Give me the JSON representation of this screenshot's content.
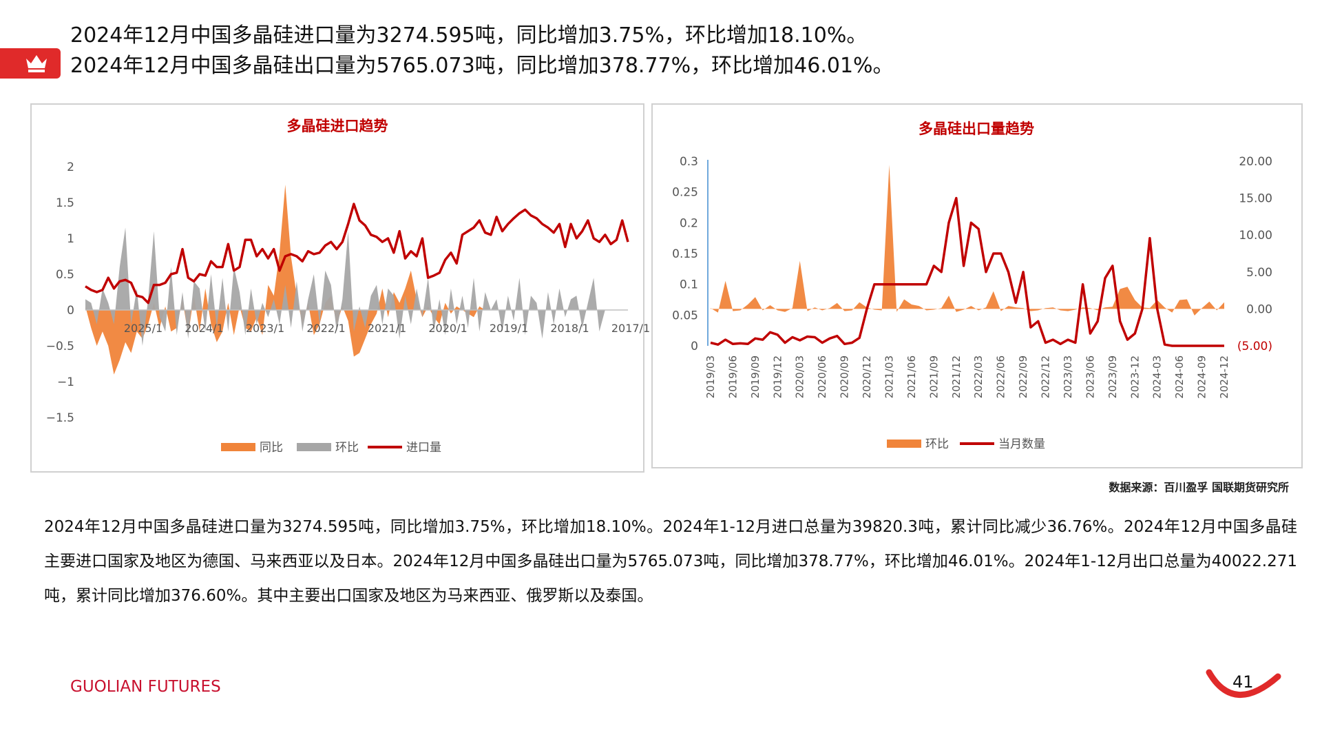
{
  "header": {
    "crown_icon": "crown-icon",
    "brand_color": "#e02a2a",
    "line1": "2024年12月中国多晶硅进口量为3274.595吨，同比增加3.75%，环比增加18.10%。",
    "line2": "2024年12月中国多晶硅出口量为5765.073吨，同比增加378.77%，环比增加46.01%。"
  },
  "source": "数据来源：百川盈孚 国联期货研究所",
  "body": "2024年12月中国多晶硅进口量为3274.595吨，同比增加3.75%，环比增加18.10%。2024年1-12月进口总量为39820.3吨，累计同比减少36.76%。2024年12月中国多晶硅主要进口国家及地区为德国、马来西亚以及日本。2024年12月中国多晶硅出口量为5765.073吨，同比增加378.77%，环比增加46.01%。2024年1-12月出口总量为40022.271吨，累计同比增加376.60%。其中主要出口国家及地区为马来西亚、俄罗斯以及泰国。",
  "footer": {
    "brand": "GUOLIAN FUTURES",
    "page": "41"
  },
  "chart_data": [
    {
      "type": "area",
      "title": "多晶硅进口趋势",
      "xlabel": "",
      "ylabel": "",
      "x_ticks": [
        "2025/1",
        "2024/1",
        "2023/1",
        "2022/1",
        "2021/1",
        "2020/1",
        "2019/1",
        "2018/1",
        "2017/1"
      ],
      "y_ticks": [
        "2",
        "1.5",
        "1",
        "0.5",
        "0",
        "−0.5",
        "−1",
        "−1.5"
      ],
      "ylim": [
        -1.5,
        2
      ],
      "x_order": "reverse-chronological",
      "legend_position": "bottom",
      "grid": false,
      "series": [
        {
          "name": "同比",
          "kind": "area",
          "color": "#f0843a",
          "values": [
            0.05,
            -0.25,
            -0.5,
            -0.3,
            -0.5,
            -0.9,
            -0.7,
            -0.45,
            -0.6,
            -0.3,
            -0.4,
            -0.2,
            0.1,
            -0.25,
            0.05,
            -0.3,
            -0.25,
            0.15,
            -0.35,
            0.2,
            -0.3,
            0.3,
            -0.2,
            -0.45,
            -0.3,
            0.1,
            -0.35,
            0.05,
            -0.25,
            -0.3,
            -0.1,
            -0.35,
            0.35,
            0.2,
            0.8,
            1.75,
            0.75,
            0.2,
            -0.2,
            0.1,
            -0.35,
            -0.2,
            0.1,
            0.2,
            -0.2,
            0.05,
            -0.15,
            -0.65,
            -0.6,
            -0.4,
            -0.2,
            -0.05,
            0.3,
            -0.1,
            0.25,
            0.1,
            0.3,
            0.55,
            0.15,
            -0.1,
            0.05,
            -0.1,
            -0.2,
            0.1,
            -0.05,
            0.05,
            0.0,
            -0.05,
            -0.1,
            0.05,
            0.0,
            0.0,
            0.0,
            0.0,
            0.0,
            0.0,
            0.0,
            0.0,
            0.0,
            0.0,
            0.0,
            0.0,
            0.0,
            0.0,
            0.0,
            0.0,
            0.0,
            0.0,
            0.0,
            0.0,
            0.0,
            0.0,
            0.0,
            0.0,
            0.0,
            0.0
          ]
        },
        {
          "name": "环比",
          "kind": "area",
          "color": "#a6a6a6",
          "values": [
            0.15,
            0.1,
            -0.2,
            0.3,
            0.1,
            -0.2,
            0.6,
            1.15,
            -0.2,
            0.3,
            -0.5,
            0.15,
            1.1,
            -0.1,
            -0.3,
            0.6,
            -0.35,
            0.25,
            -0.4,
            0.4,
            0.3,
            -0.3,
            0.5,
            -0.25,
            0.45,
            -0.3,
            0.6,
            0.25,
            -0.35,
            0.3,
            -0.2,
            0.1,
            -0.1,
            0.15,
            -0.2,
            0.35,
            -0.25,
            0.4,
            -0.3,
            0.15,
            0.5,
            -0.2,
            0.55,
            0.35,
            -0.3,
            0.15,
            1.1,
            -0.3,
            0.05,
            -0.25,
            0.2,
            0.35,
            -0.2,
            0.3,
            0.2,
            -0.4,
            0.2,
            -0.2,
            0.3,
            -0.1,
            0.45,
            -0.3,
            0.15,
            -0.35,
            0.3,
            -0.2,
            0.2,
            -0.25,
            0.45,
            -0.3,
            0.25,
            0.0,
            0.15,
            -0.3,
            0.2,
            -0.15,
            0.45,
            -0.35,
            0.2,
            0.1,
            -0.4,
            0.25,
            -0.2,
            0.3,
            -0.1,
            0.15,
            0.2,
            -0.25,
            0.1,
            0.45,
            -0.3,
            0.0,
            0.0,
            0.0,
            0.0,
            0.0
          ]
        },
        {
          "name": "进口量",
          "kind": "line",
          "color": "#c00000",
          "values": [
            0.33,
            0.28,
            0.25,
            0.28,
            0.45,
            0.3,
            0.4,
            0.42,
            0.38,
            0.2,
            0.18,
            0.1,
            0.35,
            0.35,
            0.38,
            0.5,
            0.52,
            0.85,
            0.45,
            0.4,
            0.5,
            0.48,
            0.68,
            0.6,
            0.6,
            0.92,
            0.55,
            0.6,
            0.98,
            0.98,
            0.75,
            0.85,
            0.72,
            0.85,
            0.55,
            0.75,
            0.78,
            0.75,
            0.68,
            0.82,
            0.78,
            0.8,
            0.9,
            0.95,
            0.85,
            0.95,
            1.2,
            1.48,
            1.25,
            1.18,
            1.05,
            1.02,
            0.95,
            1.0,
            0.8,
            1.1,
            0.72,
            0.82,
            0.75,
            1.0,
            0.45,
            0.48,
            0.52,
            0.7,
            0.8,
            0.65,
            1.05,
            1.1,
            1.15,
            1.25,
            1.08,
            1.05,
            1.3,
            1.1,
            1.2,
            1.28,
            1.35,
            1.4,
            1.32,
            1.28,
            1.2,
            1.15,
            1.08,
            1.2,
            0.88,
            1.2,
            1.0,
            1.1,
            1.25,
            1.0,
            0.95,
            1.05,
            0.92,
            0.98,
            1.25,
            0.95
          ]
        }
      ]
    },
    {
      "type": "area",
      "title": "多晶硅出口量趋势",
      "xlabel": "",
      "ylabel": "",
      "x": [
        "2019/03",
        "2019/04",
        "2019/05",
        "2019/06",
        "2019/07",
        "2019/08",
        "2019/09",
        "2019/10",
        "2019/11",
        "2019/12",
        "2020/01",
        "2020/02",
        "2020/03",
        "2020/04",
        "2020/05",
        "2020/06",
        "2020/07",
        "2020/08",
        "2020/09",
        "2020/10",
        "2020/11",
        "2020/12",
        "2021/01",
        "2021/02",
        "2021/03",
        "2021/04",
        "2021/05",
        "2021/06",
        "2021/07",
        "2021/08",
        "2021/09",
        "2021/10",
        "2021/11",
        "2021/12",
        "2022/01",
        "2022/02",
        "2022/03",
        "2022/04",
        "2022/05",
        "2022/06",
        "2022/07",
        "2022/08",
        "2022/09",
        "2022/10",
        "2022/11",
        "2022/12",
        "2023/01",
        "2023/02",
        "2023/03",
        "2023/04",
        "2023/05",
        "2023/06",
        "2023/07",
        "2023/08",
        "2023/09",
        "2023/10",
        "2023/11",
        "2023/12",
        "2024/01",
        "2024/02",
        "2024/03",
        "2024/04",
        "2024/05",
        "2024/06",
        "2024/07",
        "2024/08",
        "2024/09",
        "2024/10",
        "2024/11",
        "2024/12"
      ],
      "x_ticks": [
        "2019/03",
        "2019/06",
        "2019/09",
        "2019/12",
        "2020/03",
        "2020/06",
        "2020/09",
        "2020/12",
        "2021/03",
        "2021/06",
        "2021/09",
        "2021/12",
        "2022/03",
        "2022/06",
        "2022/09",
        "2022/12",
        "2023/03",
        "2023/06",
        "2023/09",
        "2023-12",
        "2024-03",
        "2024-06",
        "2024-09",
        "2024-12"
      ],
      "y_left_ticks": [
        "0.3",
        "0.25",
        "0.2",
        "0.15",
        "0.1",
        "0.05",
        "0"
      ],
      "y_left_lim": [
        0,
        0.3
      ],
      "y_right_ticks": [
        "20.00",
        "15.00",
        "10.00",
        "5.00",
        "0.00",
        "(5.00)"
      ],
      "y_right_lim": [
        -5,
        20
      ],
      "legend_position": "bottom",
      "grid": false,
      "series": [
        {
          "name": "环比",
          "kind": "area",
          "axis": "right",
          "color": "#f0843a",
          "values": [
            0.1,
            -0.5,
            3.8,
            -0.3,
            -0.2,
            0.6,
            1.6,
            -0.2,
            0.5,
            -0.2,
            -0.4,
            0.1,
            6.5,
            -0.3,
            0.2,
            -0.2,
            0.1,
            0.8,
            -0.3,
            -0.2,
            0.9,
            0.2,
            -0.1,
            -0.2,
            19.5,
            -0.4,
            1.3,
            0.6,
            0.4,
            -0.2,
            -0.1,
            0.1,
            1.8,
            -0.4,
            -0.1,
            0.4,
            -0.2,
            0.2,
            2.4,
            -0.3,
            0.4,
            0.2,
            0.1,
            -0.3,
            -0.2,
            0.1,
            0.2,
            -0.2,
            -0.3,
            -0.1,
            0.2,
            0.1,
            -0.2,
            0.2,
            0.3,
            2.7,
            3.0,
            1.2,
            0.2,
            0.1,
            1.2,
            0.2,
            -0.5,
            1.2,
            1.3,
            -0.9,
            0.1,
            1.0,
            -0.2,
            0.9
          ]
        },
        {
          "name": "当月数量",
          "kind": "line",
          "axis": "left",
          "color": "#c00000",
          "values": [
            0.005,
            0.002,
            0.01,
            0.003,
            0.004,
            0.003,
            0.012,
            0.01,
            0.022,
            0.018,
            0.005,
            0.014,
            0.009,
            0.015,
            0.014,
            0.005,
            0.012,
            0.016,
            0.003,
            0.005,
            0.013,
            0.06,
            0.1,
            0.1,
            0.1,
            0.1,
            0.1,
            0.1,
            0.1,
            0.1,
            0.13,
            0.12,
            0.2,
            0.24,
            0.13,
            0.2,
            0.19,
            0.12,
            0.15,
            0.15,
            0.12,
            0.07,
            0.12,
            0.03,
            0.04,
            0.005,
            0.01,
            0.003,
            0.01,
            0.005,
            0.1,
            0.02,
            0.04,
            0.11,
            0.13,
            0.04,
            0.01,
            0.02,
            0.06,
            0.175,
            0.06,
            0.002,
            0.0,
            0.0,
            0.0,
            0.0,
            0.0,
            0.0,
            0.0,
            0.0
          ]
        }
      ]
    }
  ]
}
